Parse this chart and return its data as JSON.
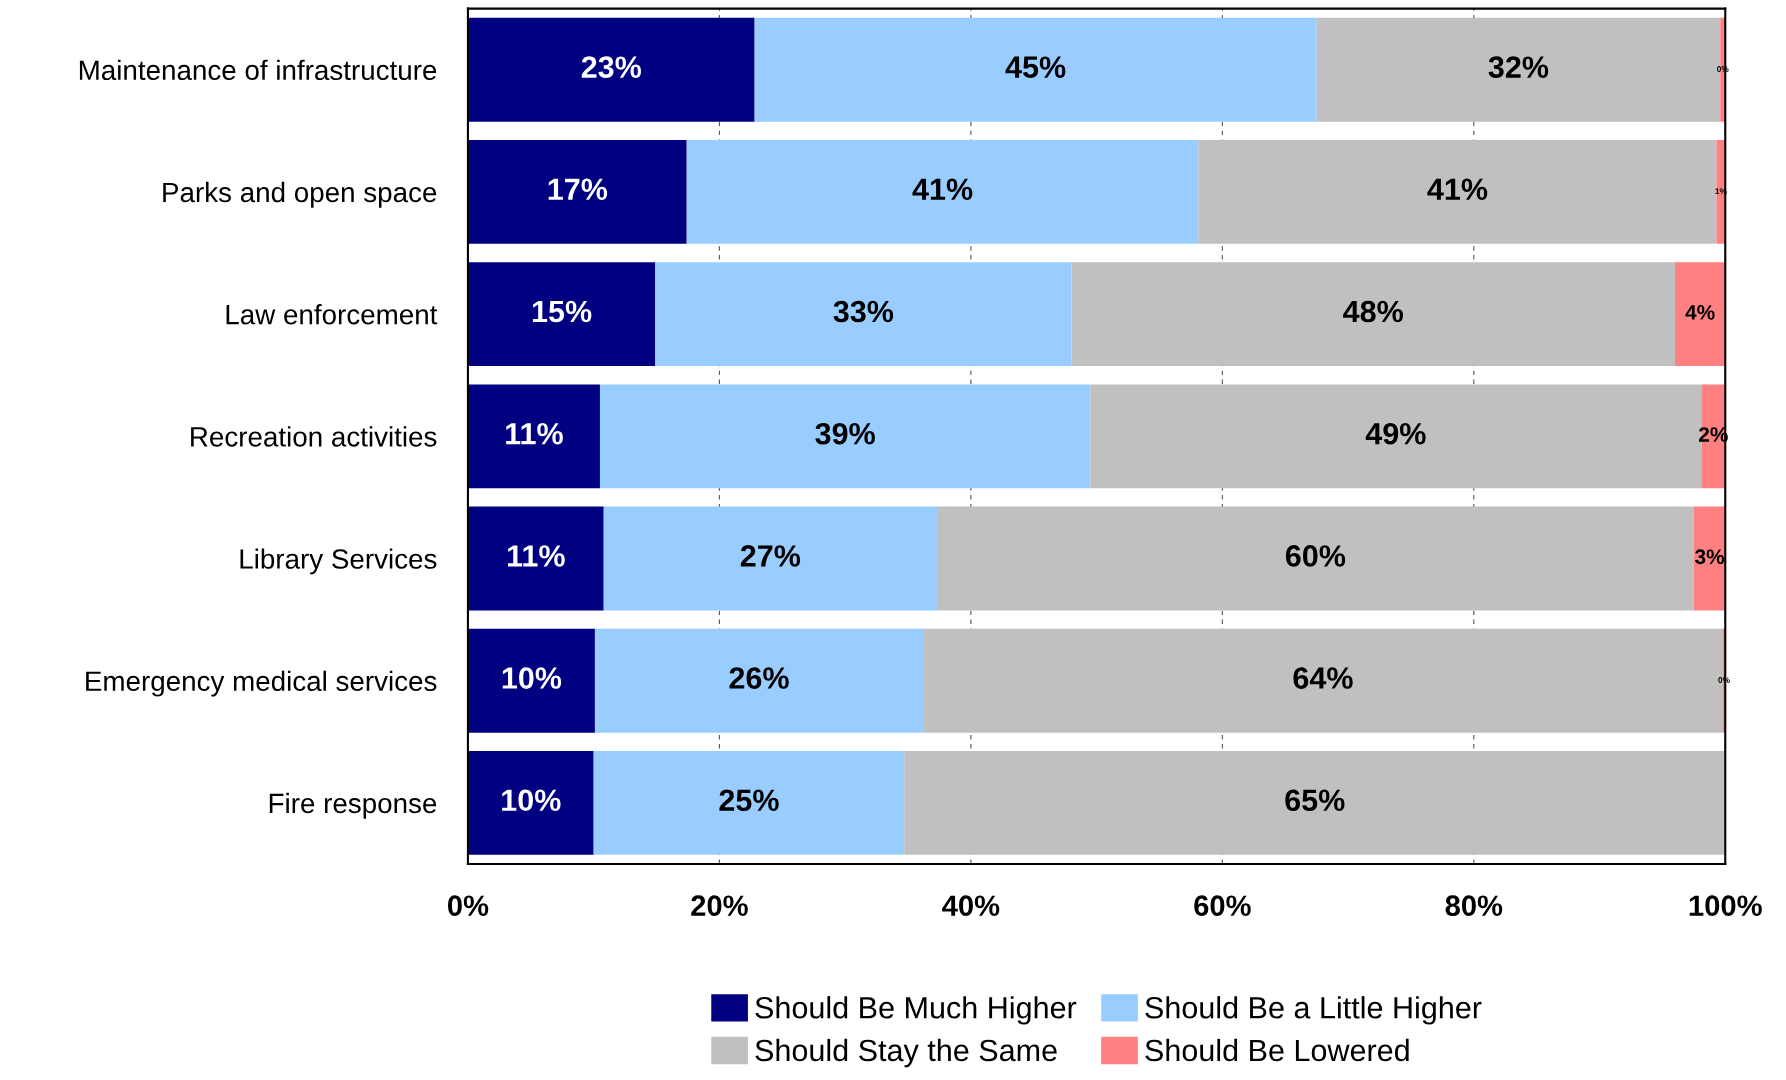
{
  "chart_data": {
    "type": "bar",
    "orientation": "horizontal",
    "stacked": true,
    "categories": [
      "Maintenance of infrastructure",
      "Parks and open space",
      "Law enforcement",
      "Recreation activities",
      "Library Services",
      "Emergency medical services",
      "Fire response"
    ],
    "series": [
      {
        "name": "Should Be Much Higher",
        "color": "#000080",
        "values": [
          22.8,
          17.4,
          14.9,
          10.5,
          10.8,
          10.1,
          10.0
        ],
        "value_labels": [
          "23%",
          "17%",
          "15%",
          "11%",
          "11%",
          "10%",
          "10%"
        ]
      },
      {
        "name": "Should Be a Little Higher",
        "color": "#99ccff",
        "values": [
          44.7,
          40.7,
          33.1,
          39.0,
          26.5,
          26.1,
          24.7
        ],
        "value_labels": [
          "45%",
          "41%",
          "33%",
          "39%",
          "27%",
          "26%",
          "25%"
        ]
      },
      {
        "name": "Should Stay the Same",
        "color": "#c0c0c0",
        "values": [
          32.1,
          41.2,
          48.0,
          48.6,
          60.2,
          63.6,
          65.3
        ],
        "value_labels": [
          "32%",
          "41%",
          "48%",
          "49%",
          "60%",
          "64%",
          "65%"
        ]
      },
      {
        "name": "Should Be Lowered",
        "color": "#ff8080",
        "values": [
          0.4,
          0.7,
          4.0,
          1.9,
          2.5,
          0.2,
          0.0
        ],
        "value_labels": [
          "0%",
          "1%",
          "4%",
          "2%",
          "3%",
          "0%",
          null
        ]
      }
    ],
    "xlim": [
      0,
      100
    ],
    "xticks": [
      {
        "value": 0,
        "label": "0%"
      },
      {
        "value": 20,
        "label": "20%"
      },
      {
        "value": 40,
        "label": "40%"
      },
      {
        "value": 60,
        "label": "60%"
      },
      {
        "value": 80,
        "label": "80%"
      },
      {
        "value": 100,
        "label": "100%"
      }
    ],
    "grid": "x",
    "legend": "bottom"
  }
}
